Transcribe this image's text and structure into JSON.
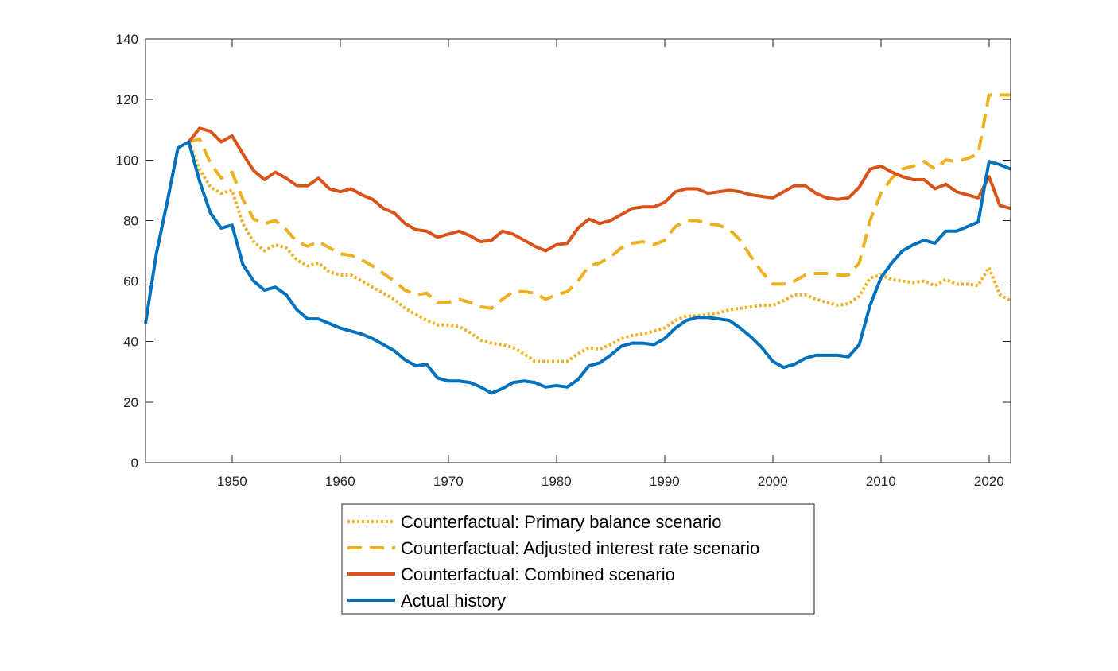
{
  "chart_data": {
    "type": "line",
    "title": "",
    "xlabel": "",
    "ylabel": "",
    "xlim": [
      1942,
      2022
    ],
    "ylim": [
      0,
      140
    ],
    "xticks": [
      1950,
      1960,
      1970,
      1980,
      1990,
      2000,
      2010,
      2020
    ],
    "yticks": [
      0,
      20,
      40,
      60,
      80,
      100,
      120,
      140
    ],
    "grid": false,
    "legend_position": "bottom-center, outside plot",
    "series": [
      {
        "name": "Counterfactual: Primary balance scenario",
        "color": "#EDB120",
        "style": "dotted",
        "x": [
          1946,
          1947,
          1948,
          1949,
          1950,
          1951,
          1952,
          1953,
          1954,
          1955,
          1956,
          1957,
          1958,
          1959,
          1960,
          1961,
          1962,
          1963,
          1964,
          1965,
          1966,
          1967,
          1968,
          1969,
          1970,
          1971,
          1972,
          1973,
          1974,
          1975,
          1976,
          1977,
          1978,
          1979,
          1980,
          1981,
          1982,
          1983,
          1984,
          1985,
          1986,
          1987,
          1988,
          1989,
          1990,
          1991,
          1992,
          1993,
          1994,
          1995,
          1996,
          1997,
          1998,
          1999,
          2000,
          2001,
          2002,
          2003,
          2004,
          2005,
          2006,
          2007,
          2008,
          2009,
          2010,
          2011,
          2012,
          2013,
          2014,
          2015,
          2016,
          2017,
          2018,
          2019,
          2020,
          2021,
          2022
        ],
        "y": [
          106,
          97,
          91,
          89,
          90,
          79,
          73,
          70,
          72,
          71,
          67,
          65,
          66,
          63,
          62,
          62,
          60,
          58,
          56,
          54,
          51,
          49,
          47,
          45.5,
          45.5,
          45,
          43,
          40.5,
          39.5,
          39,
          38,
          36,
          33.5,
          33.5,
          33.5,
          33.5,
          36,
          38,
          37.5,
          39,
          41,
          42,
          42.5,
          43.5,
          44.5,
          47,
          48.5,
          48.5,
          49,
          49.5,
          50.5,
          51,
          51.5,
          52,
          52,
          53.5,
          55.5,
          55.5,
          54,
          53,
          52,
          52.5,
          55,
          61,
          62,
          60.5,
          60,
          59.5,
          60,
          58.5,
          60.5,
          59,
          59,
          58.5,
          64.5,
          55.5,
          53.5
        ]
      },
      {
        "name": "Counterfactual: Adjusted interest rate scenario",
        "color": "#EDB120",
        "style": "dashed",
        "x": [
          1946,
          1947,
          1948,
          1949,
          1950,
          1951,
          1952,
          1953,
          1954,
          1955,
          1956,
          1957,
          1958,
          1959,
          1960,
          1961,
          1962,
          1963,
          1964,
          1965,
          1966,
          1967,
          1968,
          1969,
          1970,
          1971,
          1972,
          1973,
          1974,
          1975,
          1976,
          1977,
          1978,
          1979,
          1980,
          1981,
          1982,
          1983,
          1984,
          1985,
          1986,
          1987,
          1988,
          1989,
          1990,
          1991,
          1992,
          1993,
          1994,
          1995,
          1996,
          1997,
          1998,
          1999,
          2000,
          2001,
          2002,
          2003,
          2004,
          2005,
          2006,
          2007,
          2008,
          2009,
          2010,
          2011,
          2012,
          2013,
          2014,
          2015,
          2016,
          2017,
          2018,
          2019,
          2020,
          2021,
          2022
        ],
        "y": [
          106,
          107,
          99,
          94,
          96,
          87,
          80.5,
          79,
          80,
          77,
          73,
          71.5,
          73,
          71,
          69,
          68.5,
          67,
          65,
          62.5,
          60,
          57,
          55.5,
          56,
          53,
          53,
          54,
          53,
          51.5,
          51,
          54,
          56.5,
          56.5,
          56,
          54,
          55.5,
          56.5,
          60,
          65,
          66,
          68,
          71,
          72.5,
          73,
          72,
          73.5,
          78,
          80,
          80,
          79,
          78.5,
          77,
          73.5,
          68,
          63,
          59,
          59,
          60,
          62,
          62.5,
          62.5,
          62,
          62,
          66,
          80,
          89,
          94,
          97,
          98,
          99.5,
          97,
          100,
          99.5,
          100.5,
          102,
          121.5,
          121.5,
          121.5
        ]
      },
      {
        "name": "Counterfactual: Combined scenario",
        "color": "#D95319",
        "style": "solid",
        "x": [
          1946,
          1947,
          1948,
          1949,
          1950,
          1951,
          1952,
          1953,
          1954,
          1955,
          1956,
          1957,
          1958,
          1959,
          1960,
          1961,
          1962,
          1963,
          1964,
          1965,
          1966,
          1967,
          1968,
          1969,
          1970,
          1971,
          1972,
          1973,
          1974,
          1975,
          1976,
          1977,
          1978,
          1979,
          1980,
          1981,
          1982,
          1983,
          1984,
          1985,
          1986,
          1987,
          1988,
          1989,
          1990,
          1991,
          1992,
          1993,
          1994,
          1995,
          1996,
          1997,
          1998,
          1999,
          2000,
          2001,
          2002,
          2003,
          2004,
          2005,
          2006,
          2007,
          2008,
          2009,
          2010,
          2011,
          2012,
          2013,
          2014,
          2015,
          2016,
          2017,
          2018,
          2019,
          2020,
          2021,
          2022
        ],
        "y": [
          106,
          110.5,
          109.5,
          106,
          108,
          102,
          96.5,
          93.5,
          96,
          94,
          91.5,
          91.5,
          94,
          90.5,
          89.5,
          90.5,
          88.5,
          87,
          84,
          82.5,
          79,
          77,
          76.5,
          74.5,
          75.5,
          76.5,
          75,
          73,
          73.5,
          76.5,
          75.5,
          73.5,
          71.5,
          70,
          72,
          72.5,
          77.5,
          80.5,
          79,
          80,
          82,
          84,
          84.5,
          84.5,
          86,
          89.5,
          90.5,
          90.5,
          89,
          89.5,
          90,
          89.5,
          88.5,
          88,
          87.5,
          89.5,
          91.5,
          91.5,
          89,
          87.5,
          87,
          87.5,
          91,
          97,
          98,
          96,
          94.5,
          93.5,
          93.5,
          90.5,
          92,
          89.5,
          88.5,
          87.5,
          94.5,
          85,
          84
        ]
      },
      {
        "name": "Actual history",
        "color": "#0072BD",
        "style": "solid",
        "x": [
          1942,
          1943,
          1944,
          1945,
          1946,
          1947,
          1948,
          1949,
          1950,
          1951,
          1952,
          1953,
          1954,
          1955,
          1956,
          1957,
          1958,
          1959,
          1960,
          1961,
          1962,
          1963,
          1964,
          1965,
          1966,
          1967,
          1968,
          1969,
          1970,
          1971,
          1972,
          1973,
          1974,
          1975,
          1976,
          1977,
          1978,
          1979,
          1980,
          1981,
          1982,
          1983,
          1984,
          1985,
          1986,
          1987,
          1988,
          1989,
          1990,
          1991,
          1992,
          1993,
          1994,
          1995,
          1996,
          1997,
          1998,
          1999,
          2000,
          2001,
          2002,
          2003,
          2004,
          2005,
          2006,
          2007,
          2008,
          2009,
          2010,
          2011,
          2012,
          2013,
          2014,
          2015,
          2016,
          2017,
          2018,
          2019,
          2020,
          2021,
          2022
        ],
        "y": [
          46,
          69,
          86,
          104,
          106,
          93,
          82.5,
          77.5,
          78.5,
          65.5,
          60,
          57,
          58,
          55.5,
          50.5,
          47.5,
          47.5,
          46,
          44.5,
          43.5,
          42.5,
          41,
          39,
          37,
          34,
          32,
          32.5,
          28,
          27,
          27,
          26.5,
          25,
          23,
          24.5,
          26.5,
          27,
          26.5,
          25,
          25.5,
          25,
          27.5,
          32,
          33,
          35.5,
          38.5,
          39.5,
          39.5,
          39,
          41,
          44.5,
          47,
          48,
          48,
          47.5,
          47,
          44.5,
          41.5,
          38,
          33.5,
          31.5,
          32.5,
          34.5,
          35.5,
          35.5,
          35.5,
          35,
          39,
          52,
          61,
          66,
          70,
          72,
          73.5,
          72.5,
          76.5,
          76.5,
          78,
          79.5,
          99.5,
          98.5,
          97
        ]
      }
    ]
  }
}
